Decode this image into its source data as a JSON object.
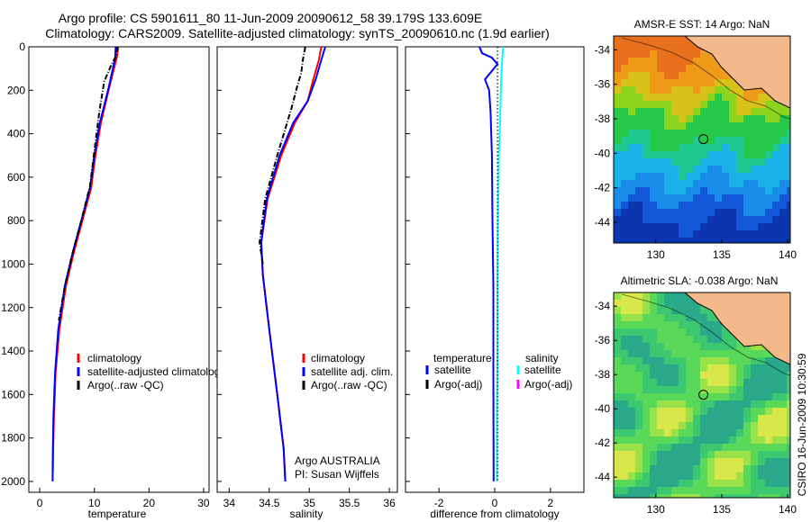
{
  "header": {
    "line1": "Argo profile: CS 5901611_80 11-Jun-2009 20090612_58 39.179S 133.609E",
    "line2": "Climatology: CARS2009. Satellite-adjusted climatology: synTS_20090610.nc (1.9d earlier)"
  },
  "side_label": "CSIRO 16-Jun-2009 10:30:59",
  "colors": {
    "climatology": "#ff0000",
    "satellite": "#0000ff",
    "argo": "#000000",
    "salinity_satellite": "#00ffff",
    "salinity_argo": "#ff00ff",
    "land": "#f4b98a"
  },
  "chart_data": [
    {
      "type": "line",
      "id": "temperature",
      "xlabel": "temperature",
      "ylabel": "",
      "xlim": [
        -2,
        31
      ],
      "ylim": [
        2050,
        0
      ],
      "xticks": [
        0,
        10,
        20,
        30
      ],
      "yticks": [
        0,
        200,
        400,
        600,
        800,
        1000,
        1200,
        1400,
        1600,
        1800,
        2000
      ],
      "legend": [
        "climatology",
        "satellite-adjusted climatology",
        "Argo(..raw -QC)"
      ],
      "legend_position": "lower-right",
      "series": [
        {
          "name": "climatology",
          "color": "#ff0000",
          "style": "solid",
          "x": [
            14.4,
            14.1,
            13.6,
            12.6,
            11.2,
            10.2,
            9.4,
            7.8,
            6.2,
            4.8,
            3.6,
            2.9,
            2.6,
            2.45,
            2.4
          ],
          "y": [
            0,
            50,
            100,
            200,
            350,
            500,
            650,
            800,
            950,
            1100,
            1300,
            1500,
            1700,
            1850,
            1950
          ]
        },
        {
          "name": "satellite-adjusted climatology",
          "color": "#0000ff",
          "style": "solid",
          "x": [
            13.9,
            13.8,
            13.4,
            12.5,
            11.0,
            10.0,
            9.2,
            7.6,
            6.0,
            4.6,
            3.4,
            2.8,
            2.5,
            2.4,
            2.35
          ],
          "y": [
            0,
            50,
            100,
            200,
            350,
            500,
            650,
            800,
            950,
            1100,
            1300,
            1500,
            1700,
            1850,
            2000
          ]
        },
        {
          "name": "Argo(..raw -QC)",
          "color": "#000000",
          "style": "dash-dot",
          "x": [
            14.2,
            14.0,
            13.0,
            11.8,
            10.9,
            10.0,
            9.2,
            7.6,
            6.0,
            4.6,
            3.5
          ],
          "y": [
            0,
            40,
            90,
            160,
            300,
            480,
            640,
            800,
            950,
            1100,
            1260
          ]
        }
      ]
    },
    {
      "type": "line",
      "id": "salinity",
      "xlabel": "salinity",
      "ylabel": "",
      "xlim": [
        33.85,
        36.1
      ],
      "ylim": [
        2050,
        0
      ],
      "xticks": [
        34,
        34.5,
        35,
        35.5,
        36
      ],
      "legend": [
        "climatology",
        "satellite adj. clim.",
        "Argo(..raw -QC)"
      ],
      "legend_position": "lower-right",
      "annotation_lines": [
        "Argo AUSTRALIA",
        "PI: Susan Wijffels"
      ],
      "series": [
        {
          "name": "climatology",
          "color": "#ff0000",
          "style": "solid",
          "x": [
            35.15,
            35.12,
            35.05,
            34.98,
            34.82,
            34.65,
            34.48,
            34.4,
            34.42,
            34.5,
            34.6,
            34.68,
            34.7
          ],
          "y": [
            0,
            60,
            150,
            250,
            350,
            500,
            700,
            900,
            1050,
            1300,
            1600,
            1850,
            2000
          ]
        },
        {
          "name": "satellite adj. clim.",
          "color": "#0000ff",
          "style": "solid",
          "x": [
            35.2,
            35.15,
            35.08,
            34.98,
            34.8,
            34.63,
            34.47,
            34.4,
            34.42,
            34.5,
            34.6,
            34.68,
            34.7
          ],
          "y": [
            0,
            60,
            150,
            250,
            350,
            500,
            700,
            900,
            1050,
            1300,
            1600,
            1850,
            2000
          ]
        },
        {
          "name": "Argo(..raw -QC)",
          "color": "#000000",
          "style": "dash-dot",
          "x": [
            34.95,
            34.92,
            34.9,
            34.85,
            34.78,
            34.6,
            34.45,
            34.38,
            34.42
          ],
          "y": [
            0,
            60,
            120,
            180,
            280,
            500,
            700,
            900,
            1000
          ]
        }
      ]
    },
    {
      "type": "line",
      "id": "difference",
      "xlabel": "difference from climatology",
      "ylabel": "",
      "xlim": [
        -3.2,
        3.2
      ],
      "ylim": [
        2050,
        0
      ],
      "xticks": [
        -2,
        0,
        2
      ],
      "legend_temperature_heading": "temperature",
      "legend_salinity_heading": "salinity",
      "legend_temperature": [
        "satellite",
        "Argo(-adj)"
      ],
      "legend_salinity": [
        "satellite",
        "Argo(-adj)"
      ],
      "series": [
        {
          "name": "temperature satellite",
          "color": "#0000ff",
          "style": "solid",
          "x": [
            -0.55,
            -0.45,
            -0.1,
            0.1,
            -0.35,
            -0.2,
            -0.15,
            -0.1,
            -0.08,
            -0.05,
            -0.05,
            -0.04
          ],
          "y": [
            0,
            30,
            50,
            80,
            150,
            200,
            300,
            500,
            800,
            1100,
            1500,
            2000
          ]
        },
        {
          "name": "salinity satellite",
          "color": "#00ffff",
          "style": "solid",
          "x": [
            0.3,
            0.25,
            0.22,
            0.2,
            0.15,
            0.12,
            0.1,
            0.1,
            0.08,
            0.08
          ],
          "y": [
            0,
            100,
            200,
            300,
            500,
            800,
            1100,
            1400,
            1700,
            2000
          ]
        },
        {
          "name": "temperature Argo(-adj)",
          "color": "#000000",
          "style": "dotted",
          "x": [
            0.1,
            0.1,
            0.1
          ],
          "y": [
            0,
            1000,
            2000
          ]
        }
      ]
    },
    {
      "type": "heatmap",
      "id": "sst",
      "title": "AMSR-E SST: 14 Argo: NaN",
      "xlim": [
        126.8,
        140.2
      ],
      "ylim": [
        -45.2,
        -33.2
      ],
      "xticks": [
        130,
        135,
        140
      ],
      "yticks": [
        -34,
        -36,
        -38,
        -40,
        -42,
        -44
      ],
      "marker": {
        "lon": 133.609,
        "lat": -39.179
      }
    },
    {
      "type": "heatmap",
      "id": "sla",
      "title": "Altimetric SLA: -0.038 Argo: NaN",
      "xlim": [
        126.8,
        140.2
      ],
      "ylim": [
        -45.2,
        -33.2
      ],
      "xticks": [
        130,
        135,
        140
      ],
      "yticks": [
        -34,
        -36,
        -38,
        -40,
        -42,
        -44
      ],
      "marker": {
        "lon": 133.609,
        "lat": -39.179
      }
    }
  ]
}
